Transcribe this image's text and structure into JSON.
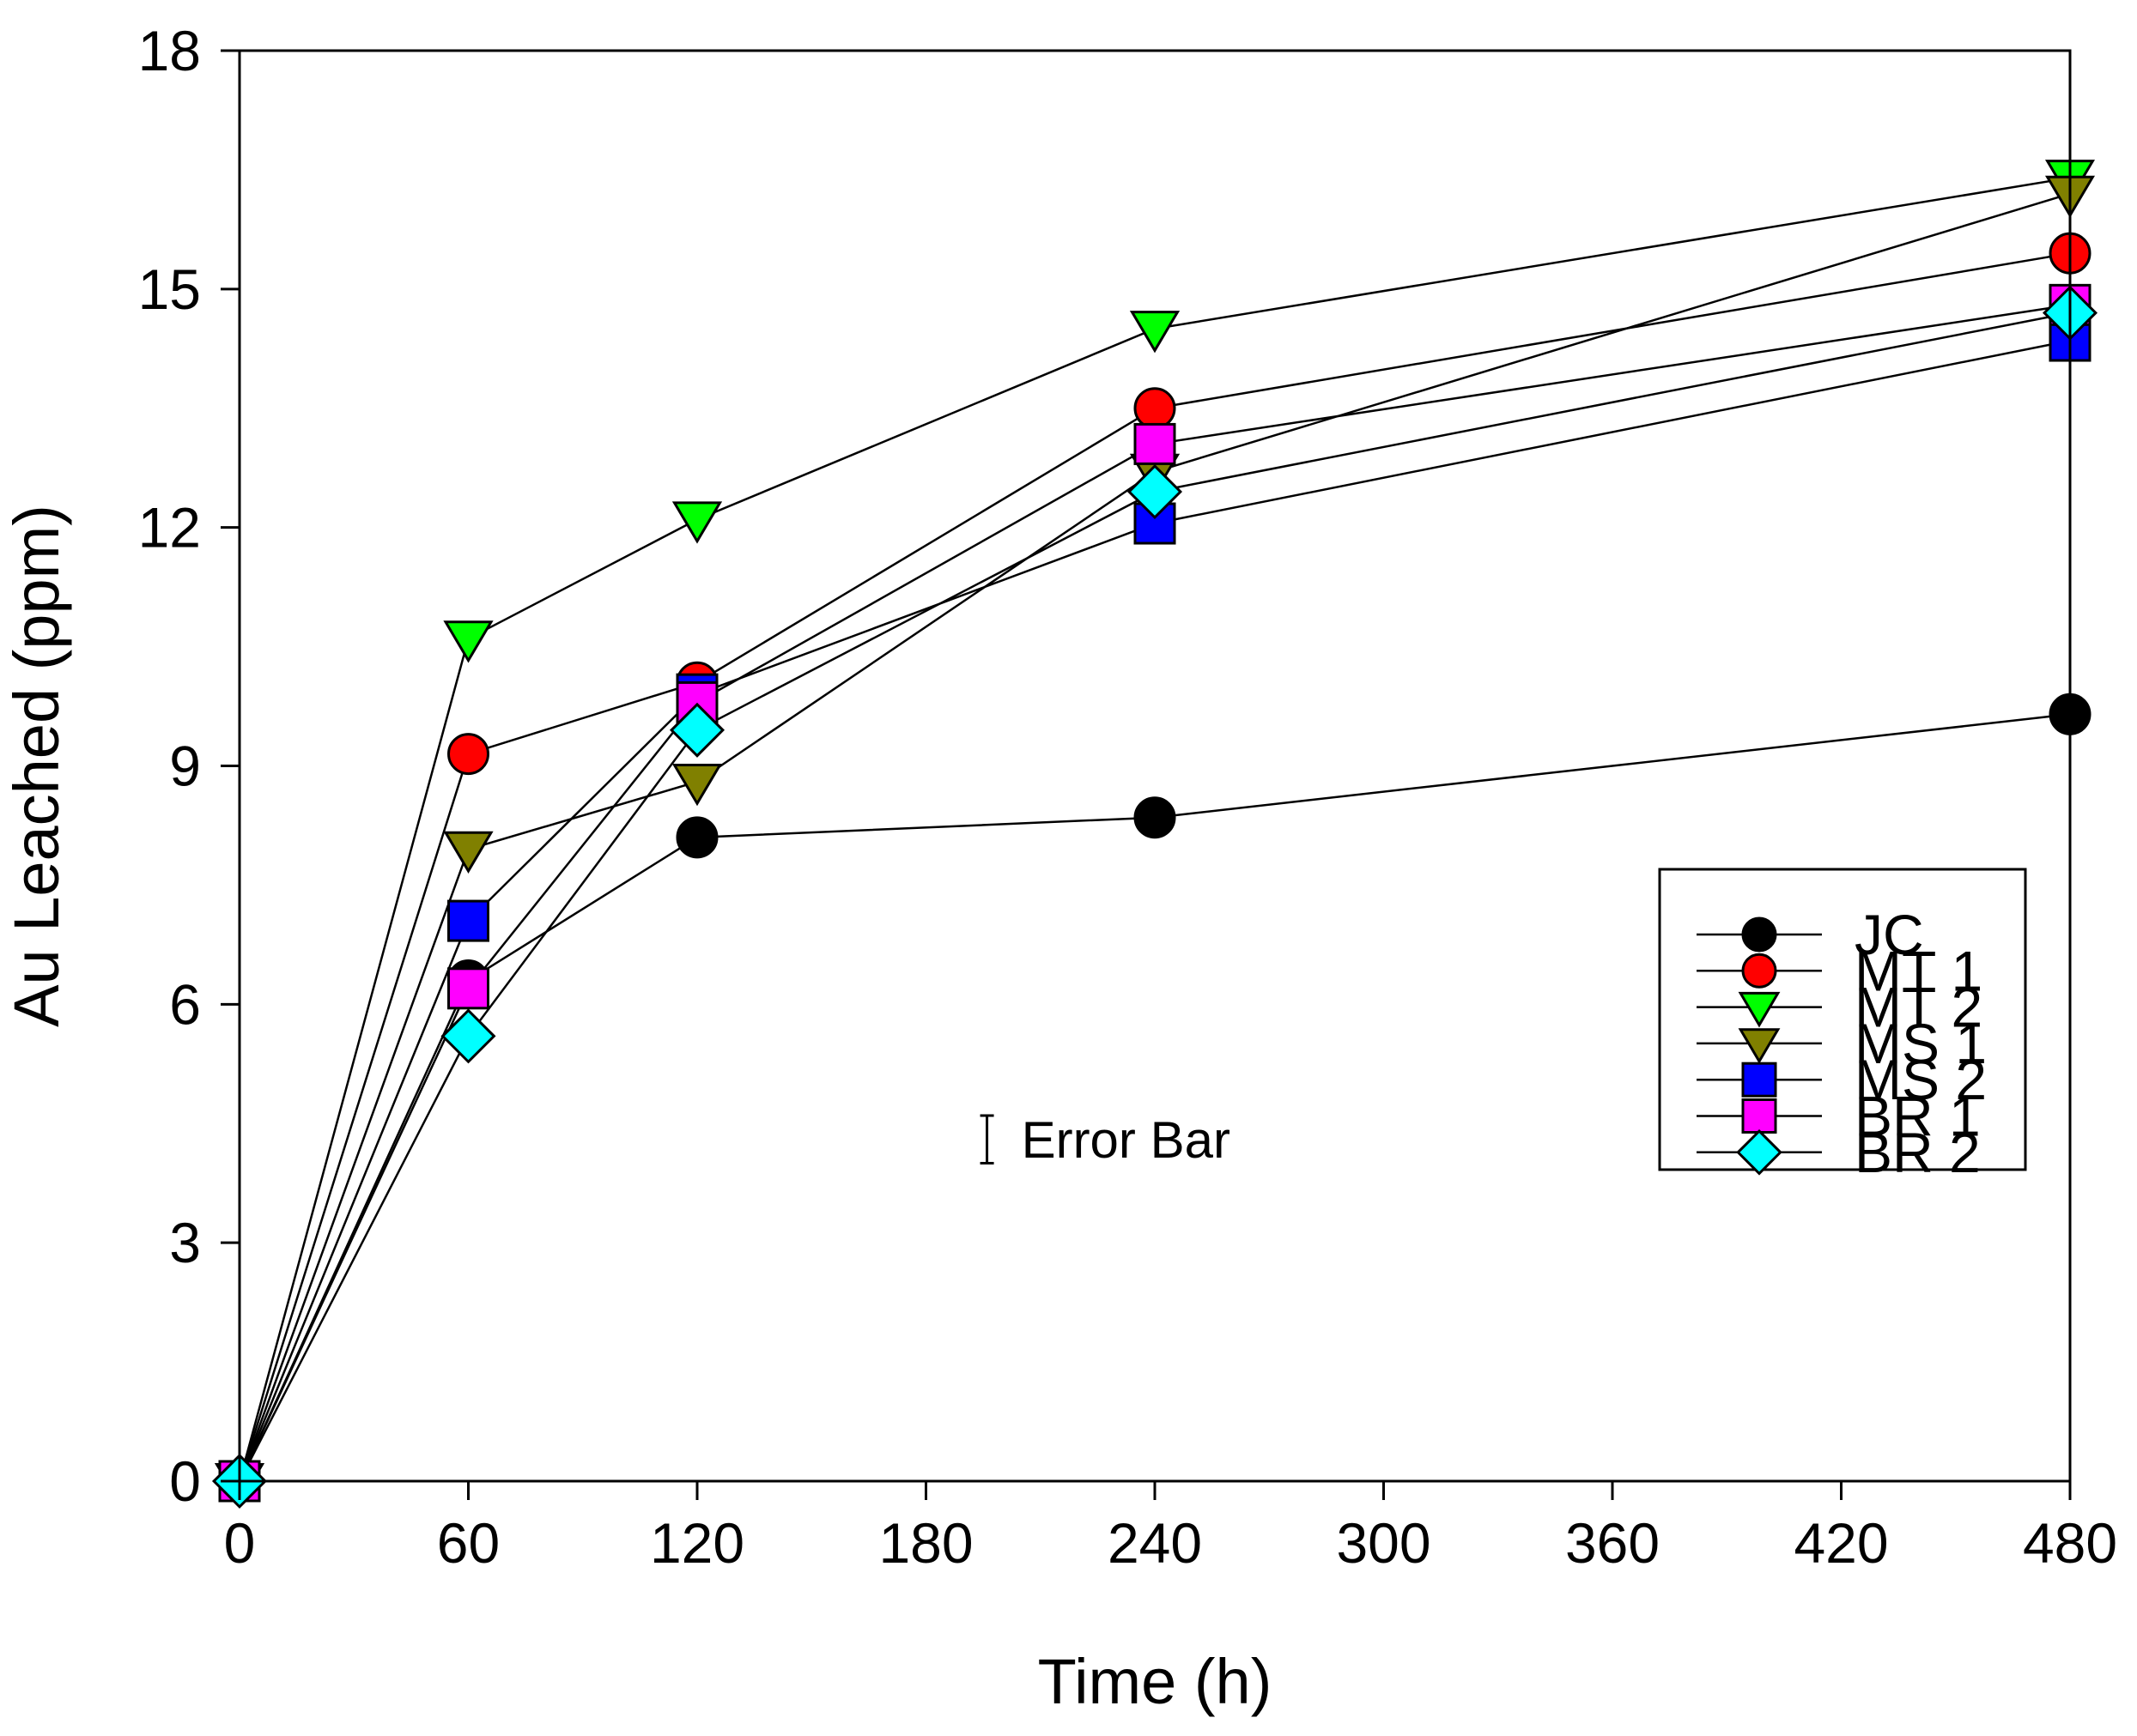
{
  "chart_data": {
    "type": "line",
    "title": "",
    "xlabel": "Time (h)",
    "ylabel": "Au Leached (ppm)",
    "xlim": [
      0,
      480
    ],
    "ylim": [
      0,
      18
    ],
    "xticks": [
      0,
      60,
      120,
      180,
      240,
      300,
      360,
      420,
      480
    ],
    "yticks": [
      0,
      3,
      6,
      9,
      12,
      15,
      18
    ],
    "grid": false,
    "legend_position": "lower-right",
    "x": [
      0,
      60,
      120,
      240,
      480
    ],
    "series": [
      {
        "name": "JC",
        "marker": "circle",
        "color": "#000000",
        "values": [
          0,
          6.3,
          8.1,
          8.35,
          9.65
        ]
      },
      {
        "name": "MT 1",
        "marker": "circle",
        "color": "#ff0000",
        "values": [
          0,
          9.15,
          10.05,
          13.5,
          15.45
        ]
      },
      {
        "name": "MT 2",
        "marker": "triangle-down",
        "color": "#00ff00",
        "values": [
          0,
          10.6,
          12.1,
          14.5,
          16.4
        ]
      },
      {
        "name": "MS 1",
        "marker": "triangle-down",
        "color": "#808000",
        "values": [
          0,
          7.95,
          8.8,
          12.7,
          16.2
        ]
      },
      {
        "name": "MS 2",
        "marker": "square",
        "color": "#0000ff",
        "values": [
          0,
          7.05,
          9.9,
          12.05,
          14.35
        ]
      },
      {
        "name": "BR 1",
        "marker": "square",
        "color": "#ff00ff",
        "values": [
          0,
          6.2,
          9.8,
          13.05,
          14.8
        ]
      },
      {
        "name": "BR 2",
        "marker": "diamond",
        "color": "#00ffff",
        "values": [
          0,
          5.6,
          9.45,
          12.45,
          14.7
        ]
      }
    ],
    "annotation": {
      "label": "Error Bar",
      "x": 196,
      "y": 4.3,
      "half_range": 0.3
    }
  }
}
